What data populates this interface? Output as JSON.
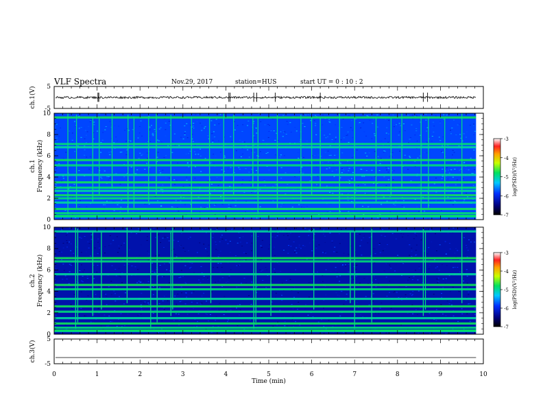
{
  "header": {
    "title": "VLF Spectra",
    "date": "Nov.29, 2017",
    "station": "station=HUS",
    "start": "start  UT =   0  : 10 : 2"
  },
  "chart_data": [
    {
      "type": "line",
      "panel": "ch1-waveform",
      "ylabel": "ch.1(V)",
      "ylim": [
        -5,
        5
      ],
      "yticks": [
        "5",
        "-5"
      ],
      "xlim": [
        0,
        10
      ],
      "baseline": 0,
      "spikes_min": [
        1.02,
        1.04,
        4.07,
        4.1,
        4.65,
        4.72,
        5.15,
        6.2,
        8.6,
        8.7
      ]
    },
    {
      "type": "heatmap",
      "panel": "ch1-spectrogram",
      "ylabel": "ch.1\nFrequency  (kHz)",
      "ylim": [
        0,
        10
      ],
      "yticks": [
        "0",
        "2",
        "4",
        "6",
        "8",
        "10"
      ],
      "xlim": [
        0,
        10
      ],
      "data_end_min": 9.83,
      "colorbar": {
        "label": "log(PSD)(V²/Hz)",
        "ticks": [
          "-3",
          "-4",
          "-5",
          "-6",
          "-7"
        ],
        "range": [
          -7,
          -3
        ]
      },
      "bands_khz": [
        0.3,
        0.6,
        1.0,
        1.6,
        2.0,
        2.3,
        2.7,
        3.0,
        3.5,
        4.2,
        5.1,
        5.6,
        6.8,
        7.1,
        9.6
      ],
      "impulse_times_min": [
        0.32,
        0.52,
        0.9,
        1.05,
        1.35,
        1.72,
        1.86,
        2.2,
        2.38,
        2.72,
        3.2,
        3.62,
        3.95,
        4.18,
        4.63,
        4.75,
        5.2,
        5.75,
        6.0,
        6.2,
        6.65,
        7.0,
        7.5,
        7.85,
        8.1,
        8.55,
        8.72,
        9.1,
        9.5
      ]
    },
    {
      "type": "heatmap",
      "panel": "ch2-spectrogram",
      "ylabel": "ch.2\nFrequency  (kHz)",
      "ylim": [
        0,
        10
      ],
      "yticks": [
        "0",
        "2",
        "4",
        "6",
        "8",
        "10"
      ],
      "xlim": [
        0,
        10
      ],
      "data_end_min": 9.83,
      "colorbar": {
        "label": "log(PSD)(V²/Hz)",
        "ticks": [
          "-3",
          "-4",
          "-5",
          "-6",
          "-7"
        ],
        "range": [
          -7,
          -3
        ]
      },
      "bands_khz": [
        0.3,
        0.6,
        1.0,
        1.5,
        2.1,
        2.6,
        3.3,
        4.2,
        4.6,
        5.6,
        6.8,
        7.1,
        9.6
      ],
      "impulse_times_min": [
        0.5,
        0.55,
        0.9,
        1.1,
        1.7,
        2.25,
        2.4,
        2.72,
        2.76,
        3.65,
        4.65,
        4.7,
        5.05,
        6.05,
        6.9,
        7.0,
        7.4,
        8.6,
        8.65,
        9.5
      ]
    },
    {
      "type": "line",
      "panel": "ch3-waveform",
      "ylabel": "ch.3(V)",
      "ylim": [
        -5,
        5
      ],
      "yticks": [
        "5",
        "-5"
      ],
      "xlim": [
        0,
        10
      ],
      "baseline": -2.5,
      "xlabel": "Time  (min)",
      "xticks": [
        "0",
        "1",
        "2",
        "3",
        "4",
        "5",
        "6",
        "7",
        "8",
        "9",
        "10"
      ]
    }
  ]
}
